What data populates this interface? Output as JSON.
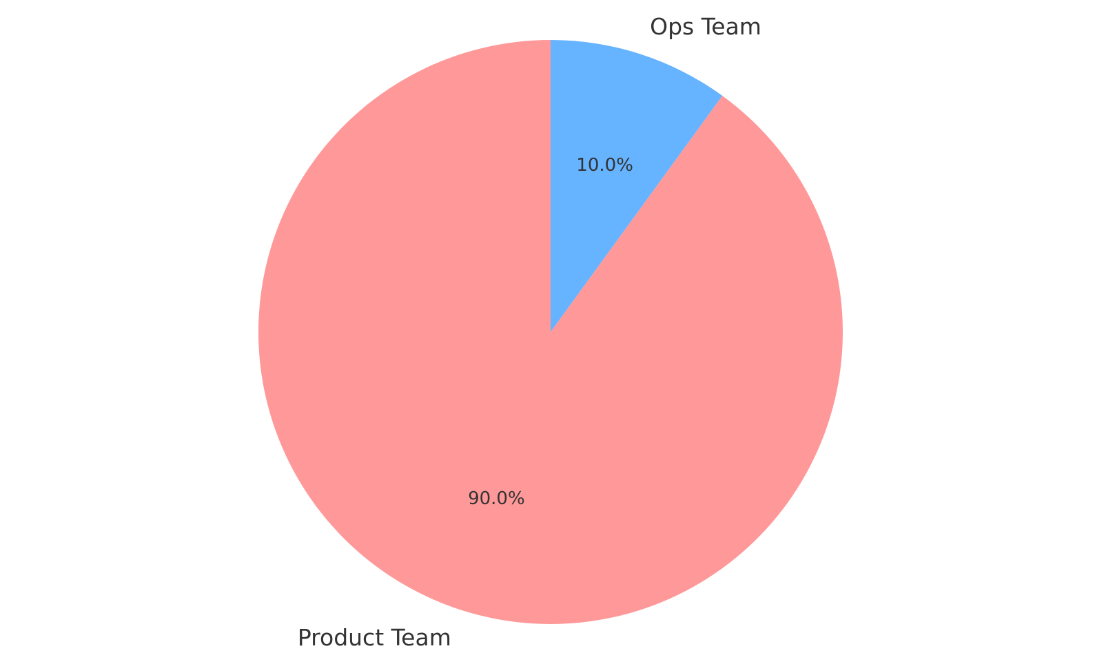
{
  "chart_data": {
    "type": "pie",
    "title": "",
    "categories": [
      "Ops Team",
      "Product Team"
    ],
    "values": [
      10.0,
      90.0
    ],
    "value_labels": [
      "10.0%",
      "90.0%"
    ],
    "colors": [
      "#66b3ff",
      "#ff9999"
    ],
    "start_angle_deg": 90,
    "direction": "clockwise",
    "legend": "none"
  }
}
